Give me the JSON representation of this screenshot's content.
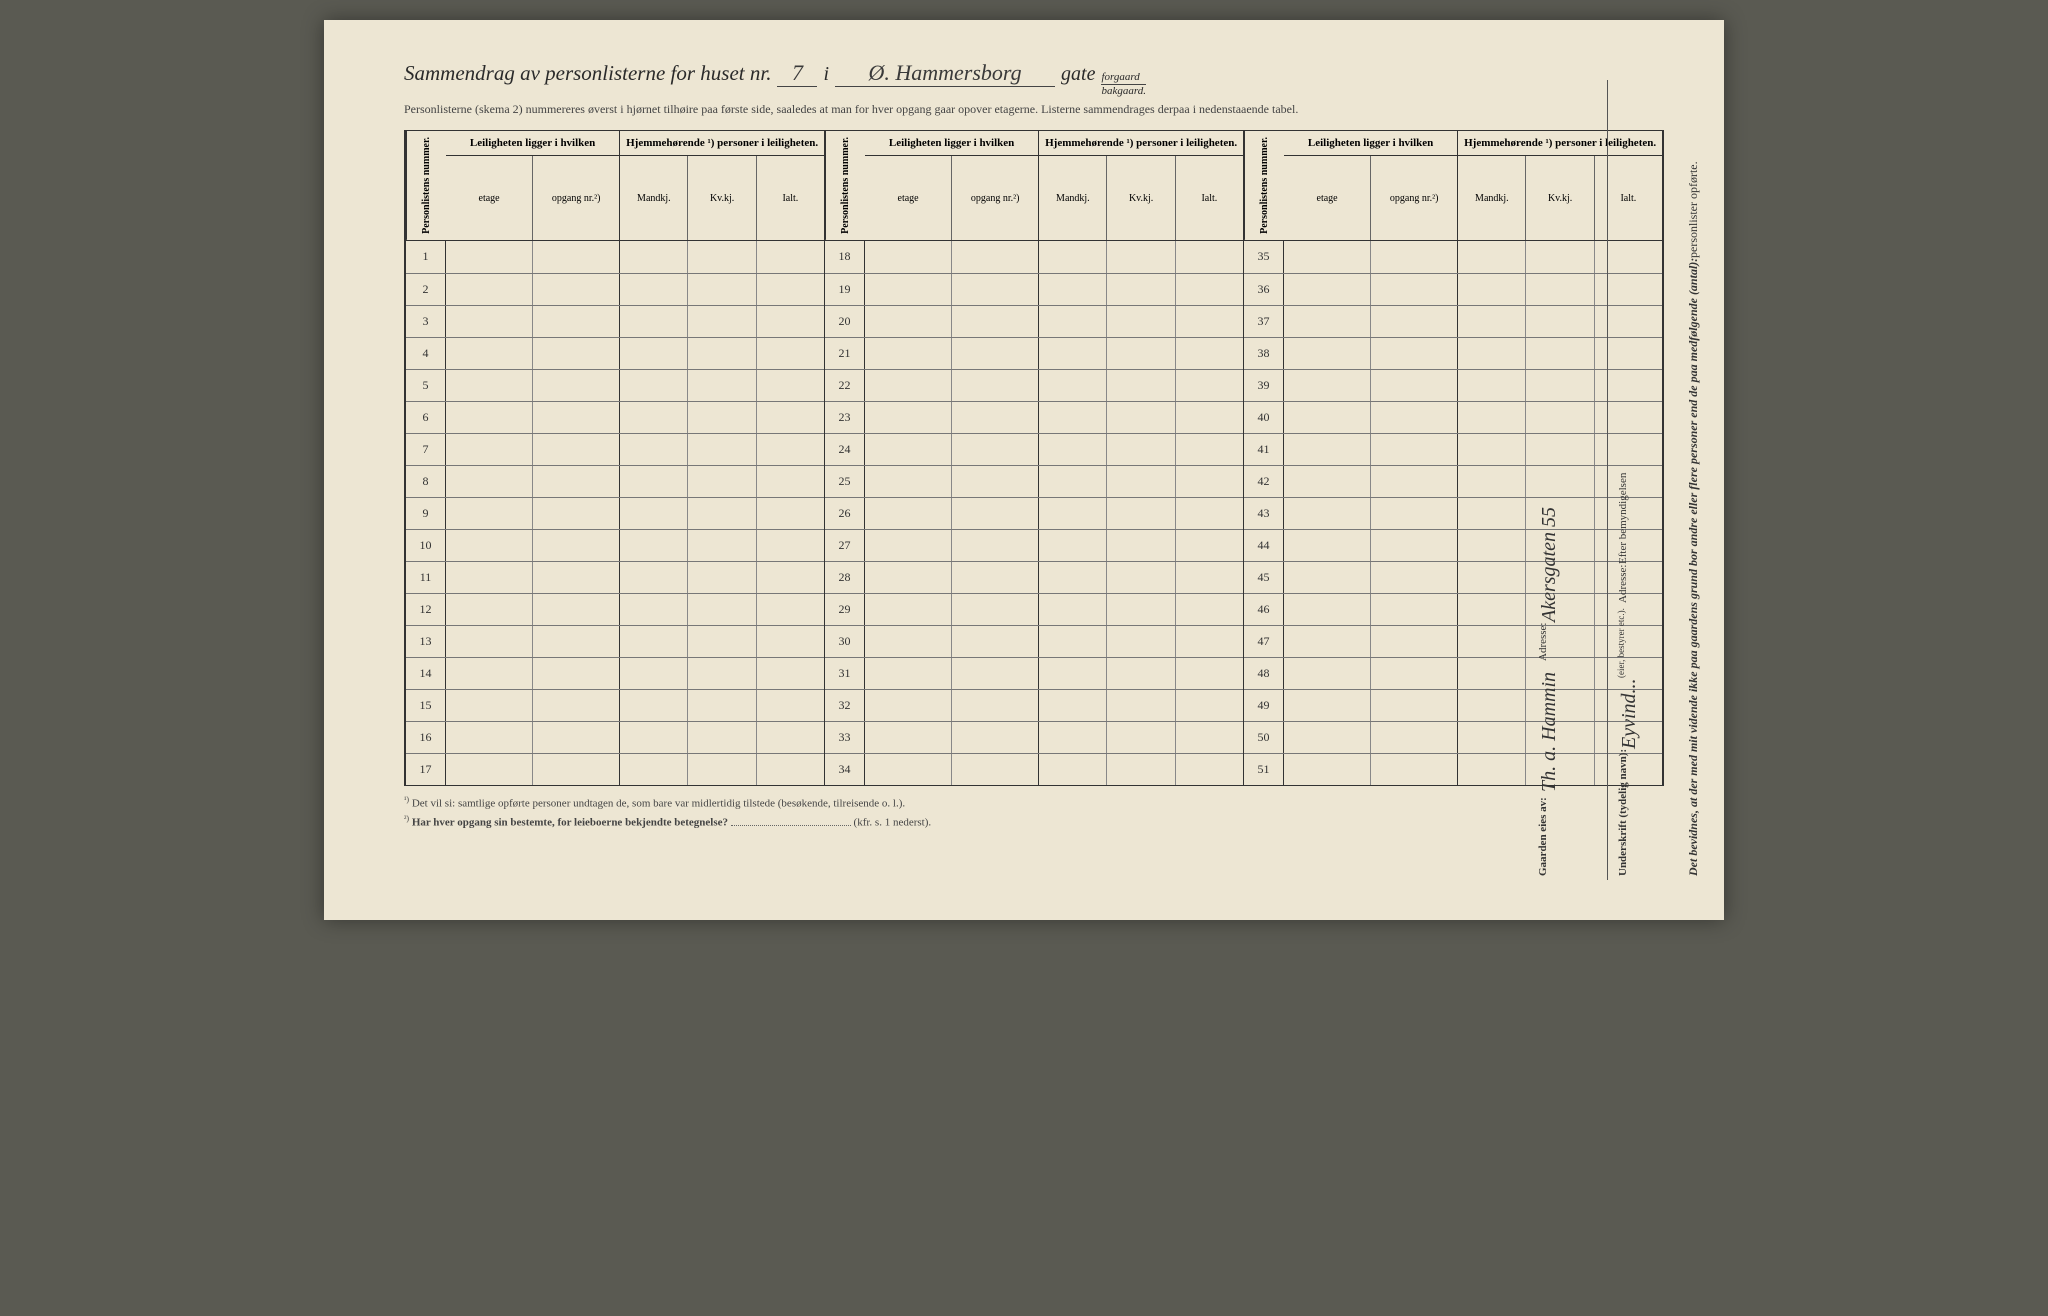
{
  "colors": {
    "page_bg": "#ede6d3",
    "outer_bg": "#5a5a52",
    "ink": "#2a2a2a",
    "rule": "#333333"
  },
  "header": {
    "title_prefix": "Sammendrag av personlisterne for huset nr.",
    "house_nr": "7",
    "in": "i",
    "street": "Ø. Hammersborg",
    "gate": "gate",
    "forgaard": "forgaard",
    "bakgaard": "bakgaard.",
    "subtitle": "Personlisterne (skema 2) nummereres øverst i hjørnet tilhøire paa første side, saaledes at man for hver opgang gaar opover etagerne.  Listerne sammendrages derpaa i nedenstaaende tabel."
  },
  "columns": {
    "personlistens_nummer": "Personlistens nummer.",
    "leiligheten": "Leiligheten ligger i hvilken",
    "hjemmehorende": "Hjemmehørende ¹) personer i leiligheten.",
    "etage": "etage",
    "opgang": "opgang nr.²)",
    "mandkj": "Mandkj.",
    "kvkj": "Kv.kj.",
    "ialt": "Ialt."
  },
  "row_numbers": {
    "block1": [
      1,
      2,
      3,
      4,
      5,
      6,
      7,
      8,
      9,
      10,
      11,
      12,
      13,
      14,
      15,
      16,
      17
    ],
    "block2": [
      18,
      19,
      20,
      21,
      22,
      23,
      24,
      25,
      26,
      27,
      28,
      29,
      30,
      31,
      32,
      33,
      34
    ],
    "block3": [
      35,
      36,
      37,
      38,
      39,
      40,
      41,
      42,
      43,
      44,
      45,
      46,
      47,
      48,
      49,
      50,
      51
    ]
  },
  "footnotes": {
    "f1_sup": "¹)",
    "f1": "Det vil si: samtlige opførte personer undtagen de, som bare var midlertidig tilstede (besøkende, tilreisende o. l.).",
    "f2_sup": "²)",
    "f2_bold": "Har hver opgang sin bestemte, for leieboerne bekjendte betegnelse?",
    "f2_tail": "(kfr. s. 1 nederst)."
  },
  "margin": {
    "attest": "Det bevidnes, at der med mit vidende ikke paa gaardens grund bor andre eller flere personer end de paa medfølgende (antal):",
    "personlister": "personlister opførte.",
    "underskrift": "Underskrift (tydelig navn):",
    "signature1": "Eyvind...",
    "role": "(eier, bestyrer etc.).",
    "adresse": "Adresse:",
    "gaarden": "Gaarden eies av:",
    "owner_sig": "Th. a. Hammin",
    "owner_addr": "Akersgaten 55",
    "red": "Efter bemyndigelsen"
  }
}
